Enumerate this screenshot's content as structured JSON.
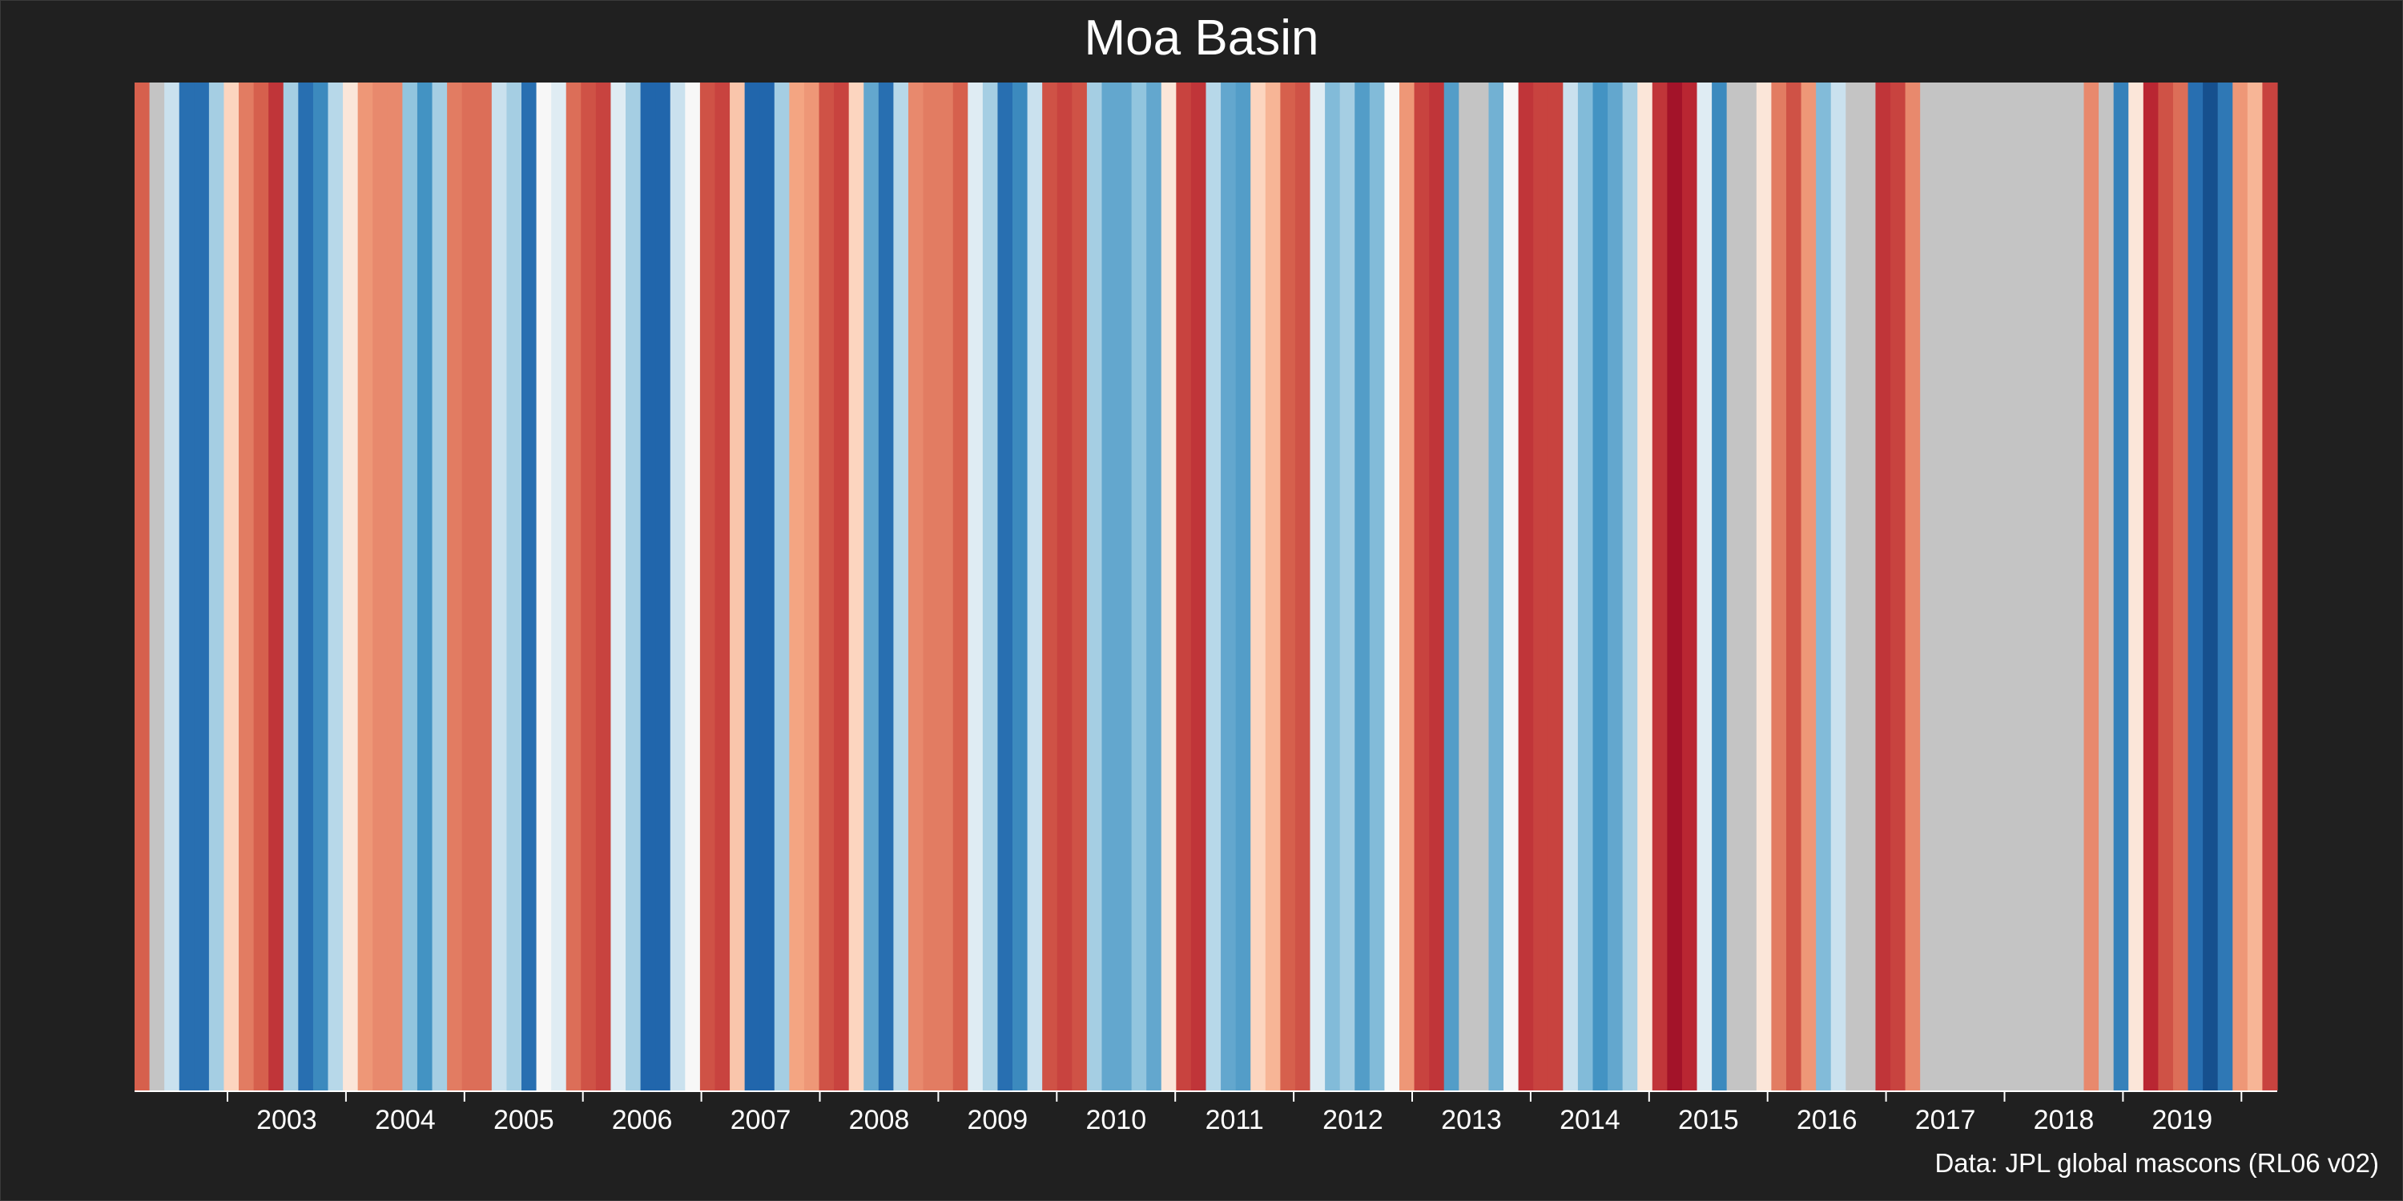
{
  "chart_data": {
    "type": "heatmap",
    "title": "Moa Basin",
    "credit": "Data: JPL global mascons (RL06 v02)",
    "xlabel": "",
    "ylabel": "",
    "x_tick_labels": [
      "2003",
      "2004",
      "2005",
      "2006",
      "2007",
      "2008",
      "2009",
      "2010",
      "2011",
      "2012",
      "2013",
      "2014",
      "2015",
      "2016",
      "2017",
      "2018",
      "2019"
    ],
    "x_range": [
      "2002-04",
      "2020-06"
    ],
    "palette": "RdBu (red = above normal, blue = below normal)",
    "missing_color": "#c4c4c4",
    "background": "#202020",
    "values": [
      0.5,
      null,
      -0.1,
      -0.7,
      -0.7,
      -0.2,
      0.1,
      0.4,
      0.5,
      0.65,
      -0.2,
      -0.7,
      -0.55,
      -0.15,
      0.05,
      0.3,
      0.35,
      0.35,
      -0.25,
      -0.5,
      -0.2,
      0.4,
      0.45,
      0.45,
      -0.1,
      -0.2,
      -0.7,
      0.0,
      -0.05,
      0.45,
      0.55,
      0.6,
      -0.05,
      -0.2,
      -0.75,
      -0.75,
      -0.1,
      0.0,
      0.55,
      0.6,
      0.15,
      -0.75,
      -0.75,
      -0.2,
      0.25,
      0.3,
      0.55,
      0.6,
      0.1,
      -0.4,
      -0.7,
      -0.15,
      0.35,
      0.4,
      0.4,
      0.5,
      -0.05,
      -0.2,
      -0.7,
      -0.55,
      -0.1,
      0.55,
      0.6,
      0.55,
      -0.2,
      -0.4,
      -0.4,
      -0.25,
      -0.4,
      0.05,
      0.6,
      0.65,
      -0.15,
      -0.4,
      -0.45,
      0.1,
      0.2,
      0.5,
      0.55,
      -0.05,
      -0.3,
      -0.2,
      -0.45,
      -0.3,
      0.0,
      0.3,
      0.6,
      0.65,
      -0.45,
      null,
      null,
      -0.35,
      0.0,
      0.65,
      0.6,
      0.6,
      -0.1,
      -0.3,
      -0.5,
      -0.4,
      -0.2,
      0.05,
      0.65,
      0.8,
      0.7,
      -0.05,
      -0.55,
      null,
      null,
      0.05,
      0.4,
      0.55,
      0.3,
      -0.3,
      -0.1,
      null,
      null,
      0.65,
      0.6,
      0.35,
      null,
      null,
      null,
      null,
      null,
      null,
      null,
      null,
      null,
      null,
      null,
      0.35,
      null,
      -0.6,
      0.05,
      0.7,
      0.55,
      0.45,
      -0.7,
      -0.85,
      -0.65,
      0.3,
      0.2,
      0.6
    ]
  }
}
